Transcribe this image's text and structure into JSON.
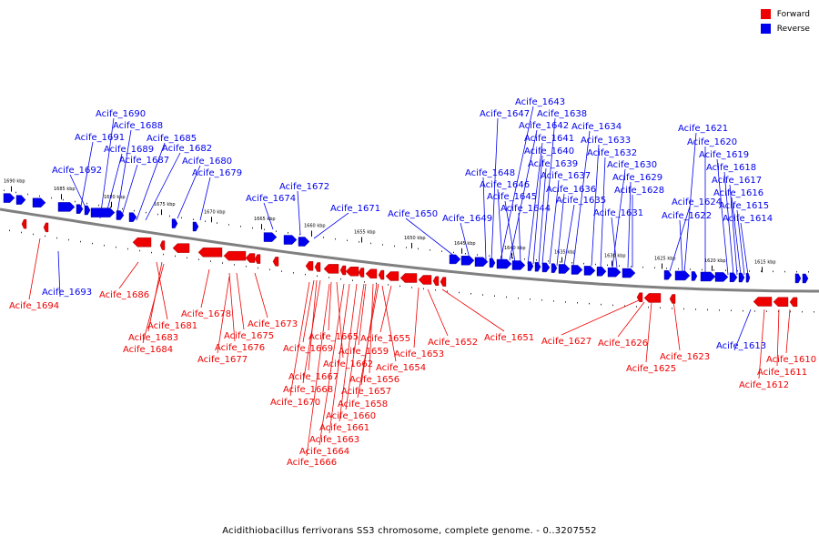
{
  "caption": "Acidithiobacillus ferrivorans SS3 chromosome, complete genome. - 0..3207552",
  "legend": [
    {
      "label": "Forward",
      "color": "#ee0000"
    },
    {
      "label": "Reverse",
      "color": "#0000ee"
    }
  ],
  "colors": {
    "forward": "#ee0000",
    "reverse": "#0000ee",
    "backbone": "#808080"
  },
  "kbp_labels": [
    "1690 kbp",
    "1685 kbp",
    "1680 kbp",
    "1675 kbp",
    "1670 kbp",
    "1665 kbp",
    "1660 kbp",
    "1655 kbp",
    "1650 kbp",
    "1645 kbp",
    "1640 kbp",
    "1635 kbp",
    "1630 kbp",
    "1625 kbp",
    "1620 kbp",
    "1615 kbp"
  ],
  "reverse_genes": [
    "Acife_1690",
    "Acife_1688",
    "Acife_1691",
    "Acife_1685",
    "Acife_1689",
    "Acife_1682",
    "Acife_1687",
    "Acife_1680",
    "Acife_1692",
    "Acife_1679",
    "Acife_1672",
    "Acife_1674",
    "Acife_1671",
    "Acife_1650",
    "Acife_1649",
    "Acife_1643",
    "Acife_1647",
    "Acife_1638",
    "Acife_1642",
    "Acife_1634",
    "Acife_1641",
    "Acife_1633",
    "Acife_1640",
    "Acife_1632",
    "Acife_1639",
    "Acife_1630",
    "Acife_1648",
    "Acife_1637",
    "Acife_1629",
    "Acife_1646",
    "Acife_1636",
    "Acife_1628",
    "Acife_1645",
    "Acife_1635",
    "Acife_1644",
    "Acife_1631",
    "Acife_1621",
    "Acife_1620",
    "Acife_1619",
    "Acife_1618",
    "Acife_1617",
    "Acife_1624",
    "Acife_1616",
    "Acife_1615",
    "Acife_1622",
    "Acife_1614",
    "Acife_1693",
    "Acife_1613"
  ],
  "forward_genes": [
    "Acife_1694",
    "Acife_1686",
    "Acife_1678",
    "Acife_1681",
    "Acife_1683",
    "Acife_1684",
    "Acife_1673",
    "Acife_1675",
    "Acife_1676",
    "Acife_1677",
    "Acife_1665",
    "Acife_1655",
    "Acife_1669",
    "Acife_1659",
    "Acife_1653",
    "Acife_1662",
    "Acife_1654",
    "Acife_1667",
    "Acife_1656",
    "Acife_1668",
    "Acife_1657",
    "Acife_1670",
    "Acife_1658",
    "Acife_1660",
    "Acife_1661",
    "Acife_1663",
    "Acife_1664",
    "Acife_1666",
    "Acife_1652",
    "Acife_1651",
    "Acife_1627",
    "Acife_1626",
    "Acife_1625",
    "Acife_1623",
    "Acife_1610",
    "Acife_1611",
    "Acife_1612"
  ]
}
